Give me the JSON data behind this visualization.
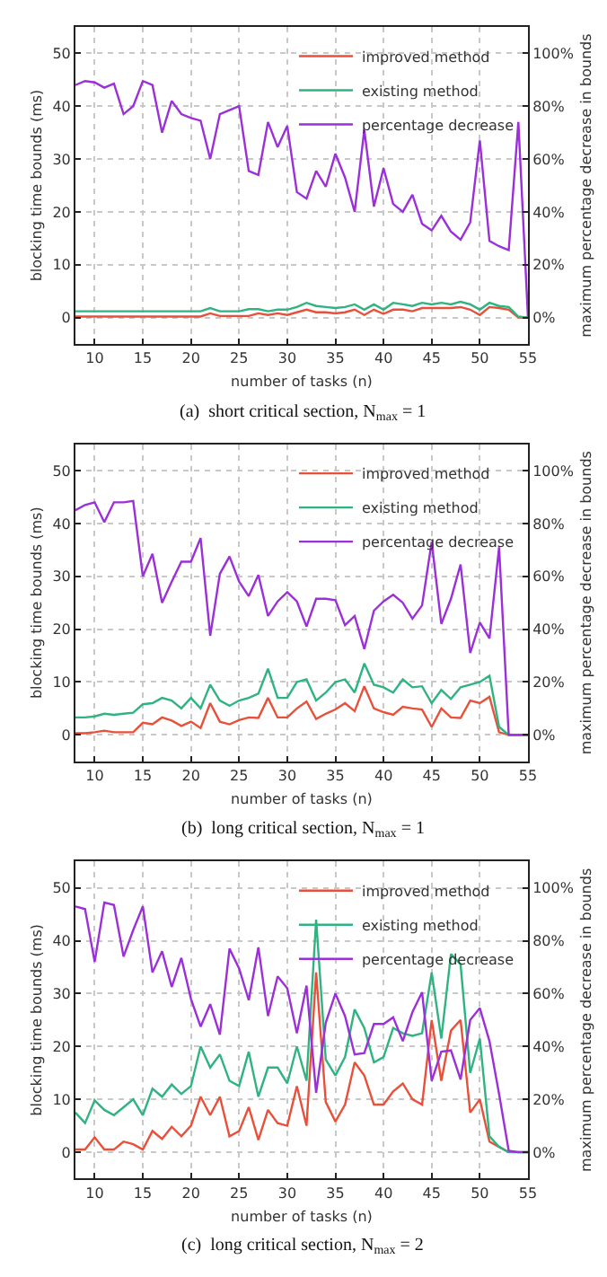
{
  "chart_data": [
    {
      "type": "line",
      "title": "(a)  short critical section, N$_{max}$ = 1",
      "xlabel": "number of tasks (n)",
      "ylabel": "blocking time bounds (ms)",
      "y2label": "maximum percentage decrease in bounds",
      "x": [
        8,
        9,
        10,
        11,
        12,
        13,
        14,
        15,
        16,
        17,
        18,
        19,
        20,
        21,
        22,
        23,
        24,
        25,
        26,
        27,
        28,
        29,
        30,
        31,
        32,
        33,
        34,
        35,
        36,
        37,
        38,
        39,
        40,
        41,
        42,
        43,
        44,
        45,
        46,
        47,
        48,
        49,
        50,
        51,
        52,
        53,
        54,
        55
      ],
      "xlim": [
        8,
        55
      ],
      "xticks": [
        10,
        15,
        20,
        25,
        30,
        35,
        40,
        45,
        50,
        55
      ],
      "ylim": [
        -5,
        55
      ],
      "yticks": [
        0,
        10,
        20,
        30,
        40,
        50
      ],
      "y2lim": [
        -10,
        110
      ],
      "y2ticks": [
        {
          "value": 0,
          "label": "0%"
        },
        {
          "value": 20,
          "label": "20%"
        },
        {
          "value": 40,
          "label": "40%"
        },
        {
          "value": 60,
          "label": "60%"
        },
        {
          "value": 80,
          "label": "80%"
        },
        {
          "value": 100,
          "label": "100%"
        }
      ],
      "grid": true,
      "legend": "top right",
      "series": [
        {
          "name": "improved method",
          "color": "#e8503a",
          "values": [
            0.2,
            0.2,
            0.2,
            0.2,
            0.2,
            0.2,
            0.2,
            0.2,
            0.2,
            0.2,
            0.2,
            0.2,
            0.2,
            0.2,
            0.8,
            0.3,
            0.3,
            0.3,
            0.3,
            0.8,
            0.5,
            0.8,
            0.5,
            1,
            1.5,
            1,
            1,
            0.8,
            1,
            1.5,
            0.5,
            1.5,
            0.7,
            1.5,
            1.5,
            1.2,
            1.8,
            1.8,
            1.8,
            1.8,
            2,
            1.5,
            0.5,
            2,
            1.8,
            1.5,
            0,
            0
          ]
        },
        {
          "name": "existing method",
          "color": "#2fb381",
          "values": [
            1.2,
            1.2,
            1.2,
            1.2,
            1.2,
            1.2,
            1.2,
            1.2,
            1.2,
            1.2,
            1.2,
            1.2,
            1.2,
            1.2,
            1.8,
            1.2,
            1.2,
            1.2,
            1.6,
            1.6,
            1.2,
            1.5,
            1.5,
            2,
            2.8,
            2.2,
            2,
            1.8,
            2,
            2.5,
            1.5,
            2.5,
            1.5,
            2.8,
            2.5,
            2.2,
            2.8,
            2.5,
            2.8,
            2.5,
            3,
            2.5,
            1.5,
            2.8,
            2.2,
            2,
            0.2,
            0
          ]
        },
        {
          "name": "percentage decrease",
          "color": "#9b30d9",
          "axis": "y2",
          "values": [
            88,
            89.5,
            89,
            87,
            88.5,
            77,
            80,
            89.5,
            88,
            70,
            82,
            77,
            75.5,
            74.5,
            60,
            77,
            78.5,
            80,
            55.5,
            54,
            74,
            64.5,
            72.5,
            47.5,
            45,
            55.5,
            49.5,
            62,
            53,
            40,
            71,
            42,
            56.5,
            43,
            40,
            46.5,
            35.5,
            33,
            38.5,
            32.5,
            29.5,
            36,
            67,
            29,
            27,
            25.5,
            74,
            0
          ]
        }
      ]
    },
    {
      "type": "line",
      "title": "(b)  long critical section, N$_{max}$ = 1",
      "xlabel": "number of tasks (n)",
      "ylabel": "blocking time bounds (ms)",
      "y2label": "maximum percentage decrease in bounds",
      "x": [
        8,
        9,
        10,
        11,
        12,
        13,
        14,
        15,
        16,
        17,
        18,
        19,
        20,
        21,
        22,
        23,
        24,
        25,
        26,
        27,
        28,
        29,
        30,
        31,
        32,
        33,
        34,
        35,
        36,
        37,
        38,
        39,
        40,
        41,
        42,
        43,
        44,
        45,
        46,
        47,
        48,
        49,
        50,
        51,
        52,
        53,
        54,
        55
      ],
      "xlim": [
        8,
        55
      ],
      "xticks": [
        10,
        15,
        20,
        25,
        30,
        35,
        40,
        45,
        50,
        55
      ],
      "ylim": [
        -5,
        55
      ],
      "yticks": [
        0,
        10,
        20,
        30,
        40,
        50
      ],
      "y2lim": [
        -10,
        110
      ],
      "y2ticks": [
        {
          "value": 0,
          "label": "0%"
        },
        {
          "value": 20,
          "label": "20%"
        },
        {
          "value": 40,
          "label": "40%"
        },
        {
          "value": 60,
          "label": "60%"
        },
        {
          "value": 80,
          "label": "80%"
        },
        {
          "value": 100,
          "label": "100%"
        }
      ],
      "grid": true,
      "legend": "top right",
      "series": [
        {
          "name": "improved method",
          "color": "#e8503a",
          "values": [
            0.3,
            0.3,
            0.5,
            0.8,
            0.5,
            0.5,
            0.5,
            2.3,
            2,
            3.3,
            2.7,
            1.7,
            2.5,
            1.3,
            6,
            2.5,
            2,
            2.8,
            3.3,
            3.2,
            7,
            3.3,
            3.3,
            5,
            6.3,
            3,
            4,
            4.8,
            6,
            4.5,
            9.2,
            5,
            4.3,
            3.8,
            5.3,
            5,
            4.8,
            1.5,
            5,
            3.3,
            3.2,
            6.5,
            6,
            7.2,
            0.5,
            0,
            0,
            0
          ]
        },
        {
          "name": "existing method",
          "color": "#2fb381",
          "values": [
            3.3,
            3.3,
            3.5,
            4,
            3.8,
            4,
            4.2,
            5.8,
            6,
            7,
            6.5,
            5,
            7,
            5,
            9.5,
            6.5,
            5.5,
            6.5,
            7,
            7.8,
            12.5,
            7,
            7,
            10,
            10.5,
            6.5,
            8,
            10,
            10.5,
            8,
            13.5,
            9.5,
            9,
            8,
            10.5,
            9,
            9.2,
            6,
            8.5,
            6.8,
            9,
            9.5,
            10,
            11.2,
            1.5,
            0,
            0,
            0
          ]
        },
        {
          "name": "percentage decrease",
          "color": "#9b30d9",
          "axis": "y2",
          "values": [
            85,
            87,
            88,
            80.5,
            88,
            88,
            88.5,
            60,
            68.5,
            50,
            58,
            65.5,
            65.5,
            74.5,
            37.5,
            61,
            67.5,
            58,
            52.5,
            60.5,
            45,
            50.5,
            54,
            50.5,
            41,
            51.5,
            51.5,
            51,
            41.5,
            45,
            32.5,
            47,
            50.5,
            53,
            50,
            44,
            49,
            73,
            42,
            51.5,
            64.5,
            31,
            42.5,
            36.5,
            71,
            0,
            0,
            0
          ]
        }
      ]
    },
    {
      "type": "line",
      "title": "(c)  long critical section, N$_{max}$ = 2",
      "xlabel": "number of tasks (n)",
      "ylabel": "blocking time bounds (ms)",
      "y2label": "maximum percentage decrease in bounds",
      "x": [
        8,
        9,
        10,
        11,
        12,
        13,
        14,
        15,
        16,
        17,
        18,
        19,
        20,
        21,
        22,
        23,
        24,
        25,
        26,
        27,
        28,
        29,
        30,
        31,
        32,
        33,
        34,
        35,
        36,
        37,
        38,
        39,
        40,
        41,
        42,
        43,
        44,
        45,
        46,
        47,
        48,
        49,
        50,
        51,
        52,
        53,
        54,
        55
      ],
      "xlim": [
        8,
        55
      ],
      "xticks": [
        10,
        15,
        20,
        25,
        30,
        35,
        40,
        45,
        50,
        55
      ],
      "ylim": [
        -5,
        55
      ],
      "yticks": [
        0,
        10,
        20,
        30,
        40,
        50
      ],
      "y2lim": [
        -10,
        110
      ],
      "y2ticks": [
        {
          "value": 0,
          "label": "0%"
        },
        {
          "value": 20,
          "label": "20%"
        },
        {
          "value": 40,
          "label": "40%"
        },
        {
          "value": 60,
          "label": "60%"
        },
        {
          "value": 80,
          "label": "80%"
        },
        {
          "value": 100,
          "label": "100%"
        }
      ],
      "grid": true,
      "legend": "top right",
      "series": [
        {
          "name": "improved method",
          "color": "#e8503a",
          "values": [
            0.5,
            0.5,
            2.8,
            0.5,
            0.5,
            2,
            1.5,
            0.5,
            4,
            2.5,
            4.8,
            3,
            5,
            10.5,
            7,
            10.5,
            3,
            4,
            8.5,
            2.3,
            8,
            5.5,
            5,
            12.5,
            5,
            34,
            9.5,
            5.8,
            9,
            17,
            14.5,
            9,
            9,
            11.5,
            13,
            10,
            9,
            25,
            13.5,
            23,
            25,
            7.5,
            10,
            2,
            1,
            0,
            null,
            null
          ]
        },
        {
          "name": "existing method",
          "color": "#2fb381",
          "values": [
            7.5,
            5.5,
            9.8,
            8,
            7,
            8.5,
            10,
            7,
            12,
            10.5,
            12.8,
            11,
            12.5,
            20,
            16,
            18.5,
            13.5,
            12.5,
            19,
            10.5,
            16,
            16,
            13,
            20,
            13.5,
            44,
            17.5,
            14.5,
            18,
            27,
            23.5,
            17,
            18,
            23.5,
            22.5,
            22,
            22.5,
            34,
            21.5,
            37.5,
            35.5,
            15,
            21.5,
            3,
            1,
            0,
            0,
            0
          ]
        },
        {
          "name": "percentage decrease",
          "color": "#9b30d9",
          "axis": "y2",
          "values": [
            93,
            92,
            72,
            94.5,
            93.5,
            74,
            84,
            93,
            68,
            76,
            62.5,
            73.5,
            58,
            47.5,
            56,
            44.5,
            77,
            69.5,
            57.5,
            77.5,
            51.5,
            66.5,
            62,
            45,
            63,
            22.5,
            49,
            60,
            51.5,
            37,
            37.5,
            48.5,
            48.5,
            51,
            42,
            53,
            60.5,
            27,
            38,
            38.5,
            27.5,
            50,
            54.5,
            42,
            22,
            0.5,
            0,
            0
          ]
        }
      ]
    }
  ]
}
